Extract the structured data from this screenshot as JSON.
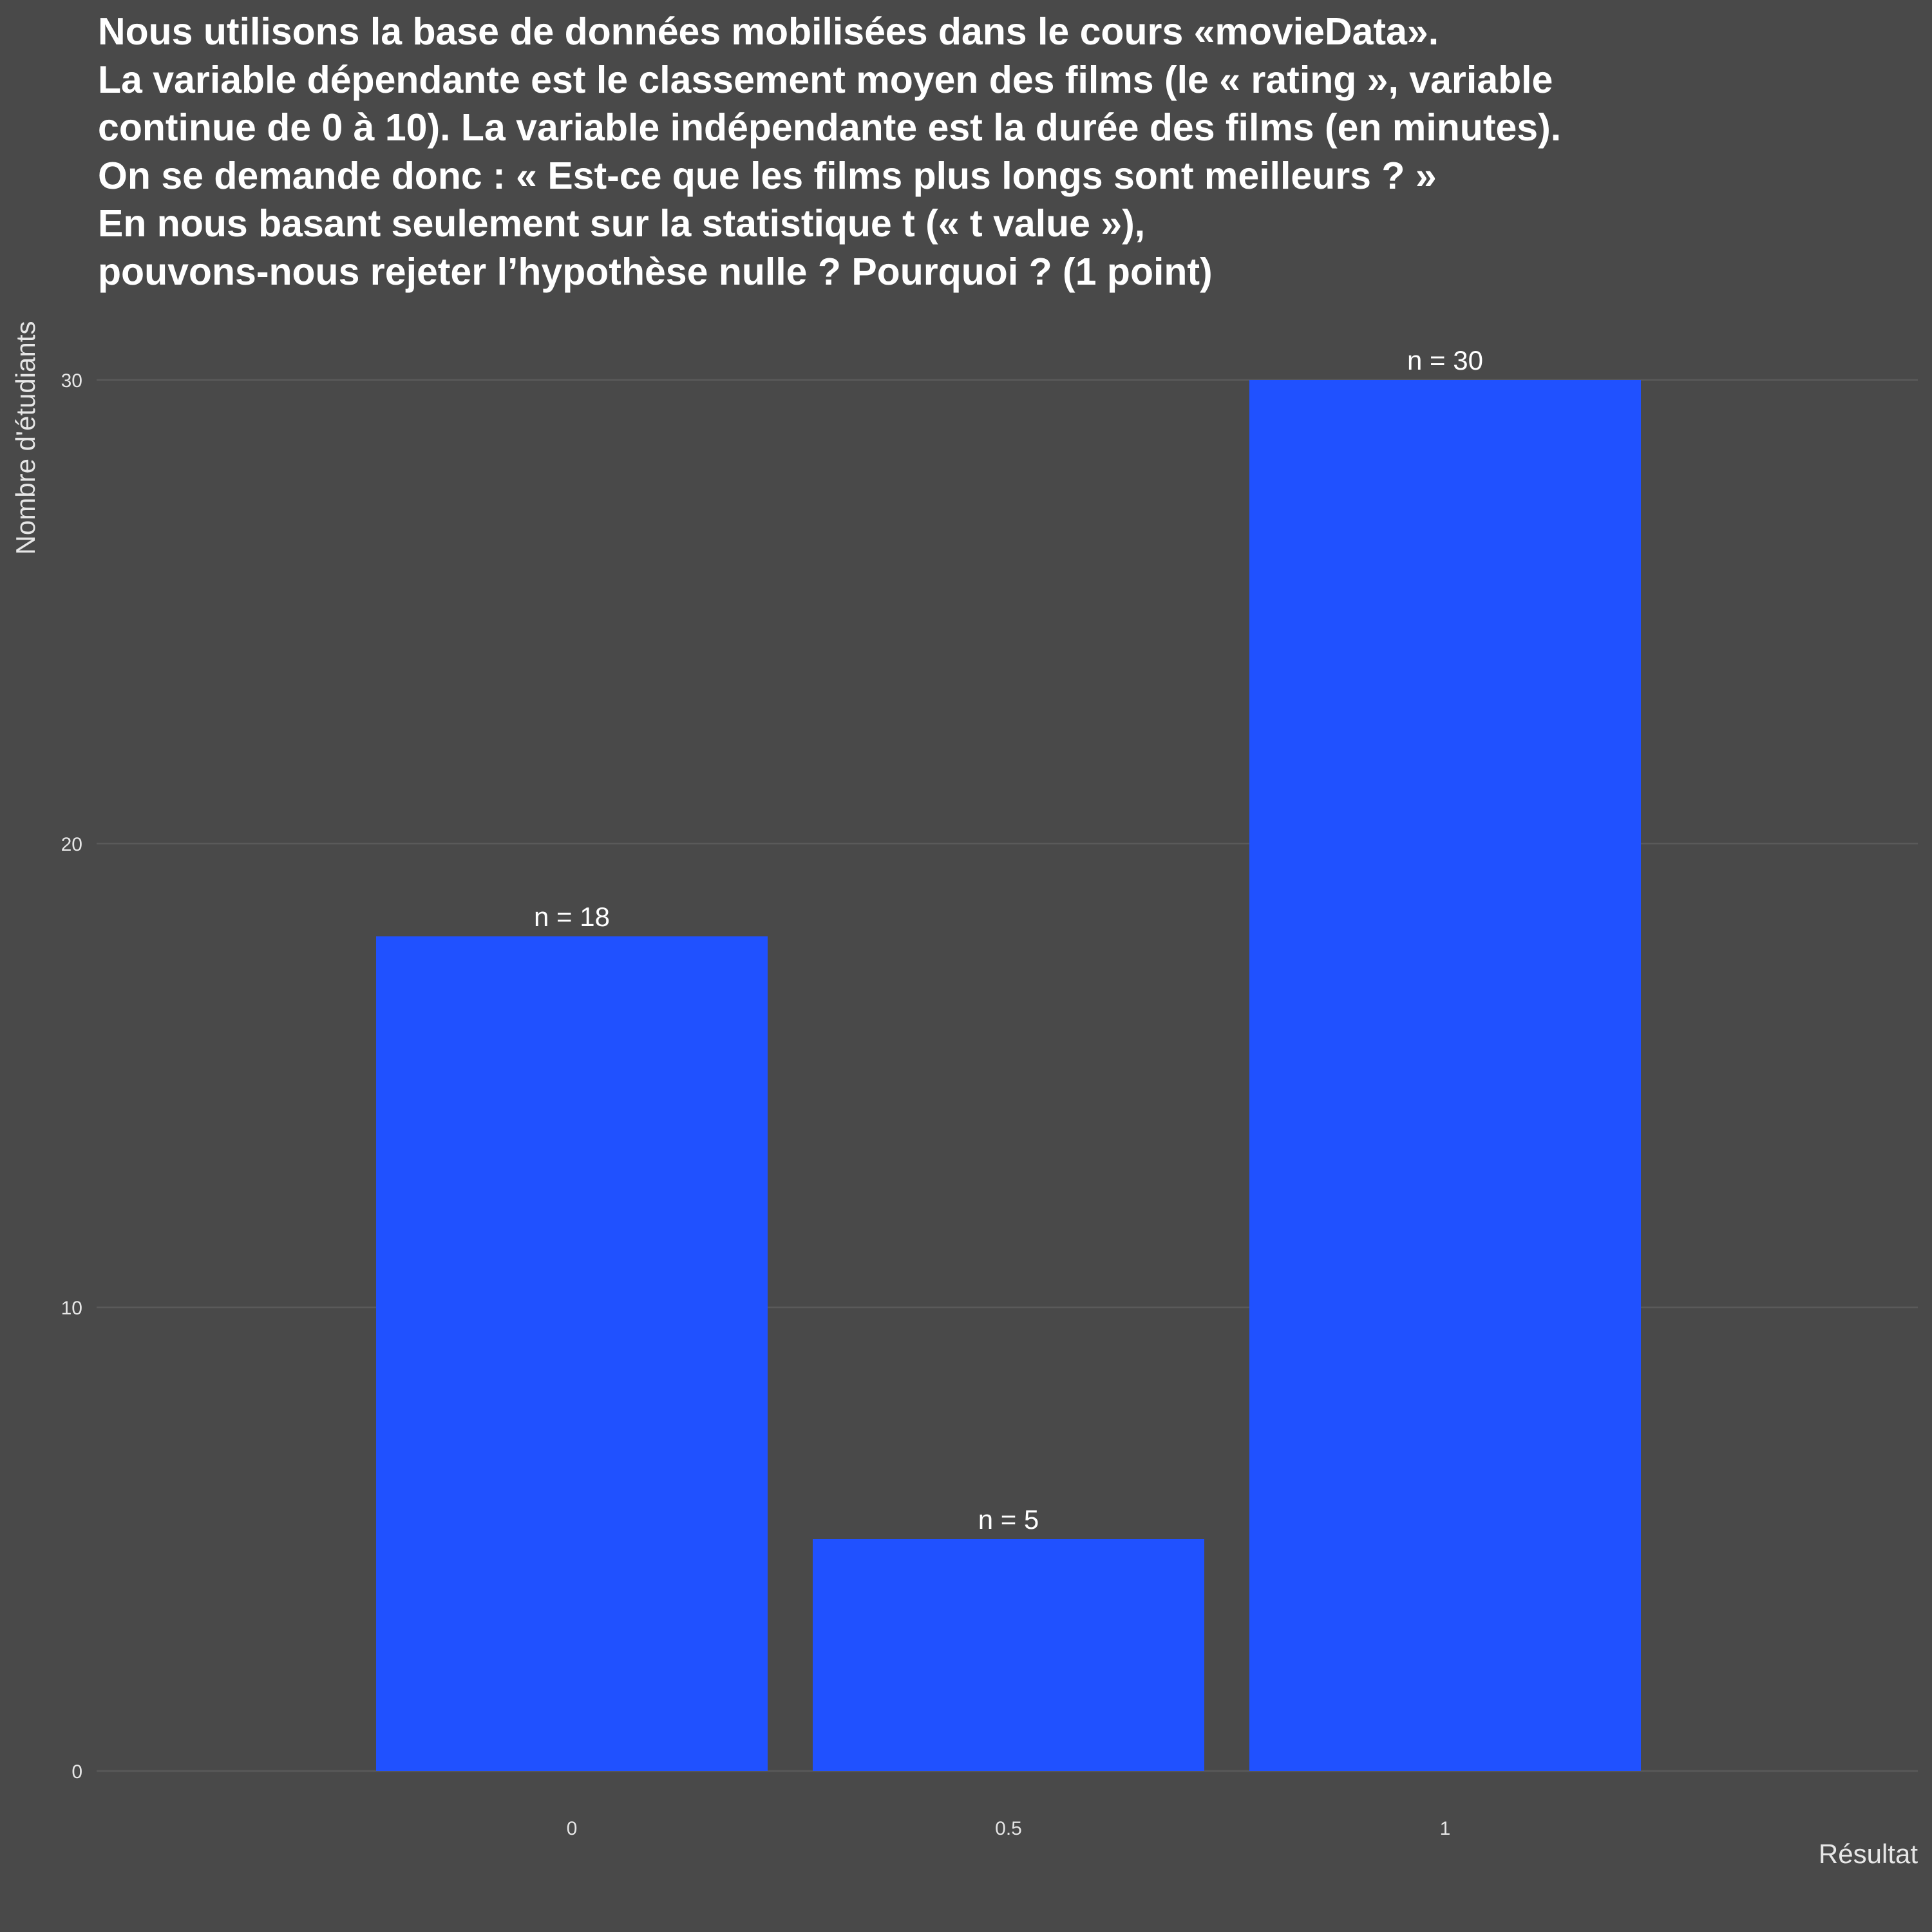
{
  "chart_data": {
    "type": "bar",
    "title_lines": [
      "Nous utilisons la base de données mobilisées dans le cours «movieData».",
      "La variable dépendante est le classement moyen des films (le « rating », variable",
      "continue de 0 à 10). La variable indépendante est la durée des films (en minutes).",
      "On se demande donc : « Est-ce que les films plus longs sont meilleurs ? »",
      "En nous basant seulement sur la statistique t (« t value »),",
      "pouvons-nous rejeter l’hypothèse nulle ? Pourquoi ? (1 point)"
    ],
    "xlabel": "Résultat",
    "ylabel": "Nombre d'étudiants",
    "categories": [
      "0",
      "0.5",
      "1"
    ],
    "values": [
      18,
      5,
      30
    ],
    "data_labels": [
      "n = 18",
      "n = 5",
      "n = 30"
    ],
    "yticks": [
      0,
      10,
      20,
      30
    ],
    "ylim": [
      0,
      30
    ],
    "grid": true,
    "legend": "none",
    "colors": {
      "bar": "#2051ff",
      "background": "#494949",
      "grid": "#5a5a5a",
      "text": "#e6e6e6"
    }
  }
}
